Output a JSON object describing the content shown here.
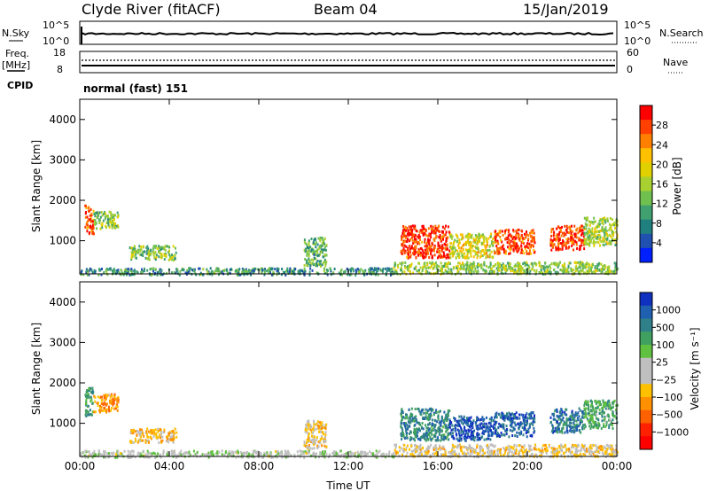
{
  "header": {
    "station": "Clyde River (fitACF)",
    "beam": "Beam 04",
    "date": "15/Jan/2019"
  },
  "nsky_panel": {
    "left_label": "N.Sky",
    "right_label": "N.Search",
    "left_ticks": [
      "10^5",
      "10^0"
    ],
    "right_ticks": [
      "10^5",
      "10^0"
    ]
  },
  "freq_panel": {
    "left_label": "Freq.",
    "left_unit": "[MHz]",
    "right_label": "Nave",
    "left_ticks": [
      "18",
      "8"
    ],
    "right_ticks": [
      "60",
      "0"
    ]
  },
  "cpid": {
    "label": "CPID",
    "value": "normal (fast) 151"
  },
  "chart_data": [
    {
      "type": "heatmap",
      "quantity": "Power",
      "ylabel": "Slant Range [km]",
      "ylim": [
        180,
        4500
      ],
      "yticks": [
        "4000",
        "3000",
        "2000",
        "1000"
      ],
      "ytick_values": [
        4000,
        3000,
        2000,
        1000
      ],
      "xticks": [
        "00:00",
        "04:00",
        "08:00",
        "12:00",
        "16:00",
        "20:00",
        "00:00"
      ],
      "colorbar": {
        "label": "Power [dB]",
        "ticks": [
          "28",
          "24",
          "20",
          "16",
          "12",
          "8",
          "4"
        ],
        "colors": [
          "#ff0000",
          "#ff4000",
          "#ff8000",
          "#ffc000",
          "#e0d000",
          "#a8d030",
          "#70c050",
          "#40a070",
          "#208080",
          "#2050b0",
          "#0020ff"
        ]
      },
      "regions": [
        {
          "t0": 0.2,
          "t1": 0.6,
          "r0": 1200,
          "r1": 1900,
          "level": 26
        },
        {
          "t0": 0.6,
          "t1": 1.7,
          "r0": 1300,
          "r1": 1750,
          "level": 14
        },
        {
          "t0": 2.2,
          "t1": 4.3,
          "r0": 550,
          "r1": 900,
          "level": 14
        },
        {
          "t0": 10.0,
          "t1": 11.0,
          "r0": 400,
          "r1": 1100,
          "level": 12
        },
        {
          "t0": 14.3,
          "t1": 16.5,
          "r0": 600,
          "r1": 1400,
          "level": 27
        },
        {
          "t0": 16.5,
          "t1": 18.5,
          "r0": 600,
          "r1": 1200,
          "level": 18
        },
        {
          "t0": 18.5,
          "t1": 20.3,
          "r0": 700,
          "r1": 1300,
          "level": 26
        },
        {
          "t0": 21.0,
          "t1": 22.5,
          "r0": 800,
          "r1": 1400,
          "level": 27
        },
        {
          "t0": 22.5,
          "t1": 24.0,
          "r0": 900,
          "r1": 1600,
          "level": 16
        },
        {
          "t0": 14.0,
          "t1": 24.0,
          "r0": 200,
          "r1": 500,
          "level": 15
        },
        {
          "t0": 0.0,
          "t1": 14.0,
          "r0": 180,
          "r1": 350,
          "level": 10
        }
      ]
    },
    {
      "type": "heatmap",
      "quantity": "Velocity",
      "ylabel": "Slant Range [km]",
      "xlabel": "Time UT",
      "ylim": [
        180,
        4500
      ],
      "yticks": [
        "4000",
        "3000",
        "2000",
        "1000"
      ],
      "ytick_values": [
        4000,
        3000,
        2000,
        1000
      ],
      "xticks": [
        "00:00",
        "04:00",
        "08:00",
        "12:00",
        "16:00",
        "20:00",
        "00:00"
      ],
      "colorbar": {
        "label": "Velocity [m s⁻¹]",
        "ticks": [
          "1000",
          "500",
          "100",
          "25",
          "−25",
          "−100",
          "−500",
          "−1000"
        ],
        "colors": [
          "#1030c0",
          "#2060b0",
          "#30808a",
          "#40a060",
          "#60c040",
          "#bfbfbf",
          "#bfbfbf",
          "#ffc000",
          "#ff9000",
          "#ff6000",
          "#ff2000",
          "#ff0000"
        ]
      },
      "regions": [
        {
          "t0": 0.2,
          "t1": 0.6,
          "r0": 1200,
          "r1": 1900,
          "level": 500
        },
        {
          "t0": 0.6,
          "t1": 1.7,
          "r0": 1300,
          "r1": 1750,
          "level": -400
        },
        {
          "t0": 2.2,
          "t1": 4.3,
          "r0": 550,
          "r1": 900,
          "level": -300
        },
        {
          "t0": 10.0,
          "t1": 11.0,
          "r0": 400,
          "r1": 1100,
          "level": -200
        },
        {
          "t0": 14.3,
          "t1": 16.5,
          "r0": 600,
          "r1": 1400,
          "level": 600
        },
        {
          "t0": 16.5,
          "t1": 18.5,
          "r0": 600,
          "r1": 1200,
          "level": 900
        },
        {
          "t0": 18.5,
          "t1": 20.3,
          "r0": 700,
          "r1": 1300,
          "level": 800
        },
        {
          "t0": 21.0,
          "t1": 22.5,
          "r0": 800,
          "r1": 1400,
          "level": 700
        },
        {
          "t0": 22.5,
          "t1": 24.0,
          "r0": 900,
          "r1": 1600,
          "level": 400
        },
        {
          "t0": 14.0,
          "t1": 24.0,
          "r0": 200,
          "r1": 500,
          "level": -150
        },
        {
          "t0": 0.0,
          "t1": 14.0,
          "r0": 180,
          "r1": 350,
          "level": 60
        }
      ]
    }
  ]
}
